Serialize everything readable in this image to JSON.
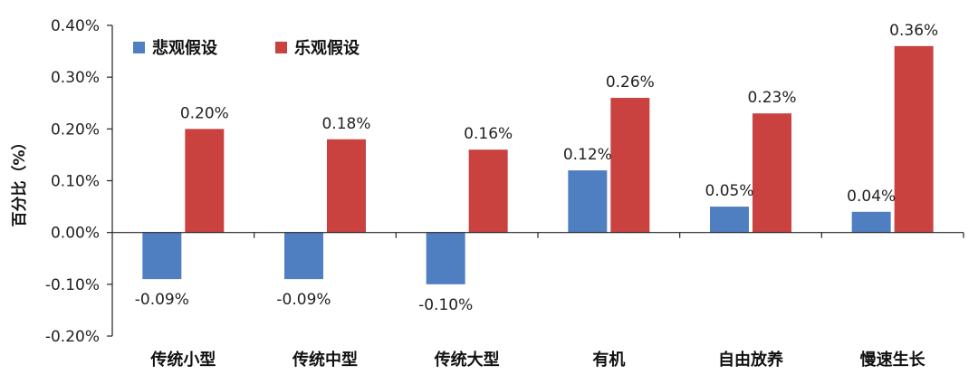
{
  "chart_data": {
    "type": "bar",
    "ylabel": "百分比（%）",
    "ylim": [
      -0.2,
      0.4
    ],
    "yticks": [
      0.4,
      0.3,
      0.2,
      0.1,
      0.0,
      -0.1,
      -0.2
    ],
    "ytick_labels": [
      "0.40%",
      "0.30%",
      "0.20%",
      "0.10%",
      "0.00%",
      "-0.10%",
      "-0.20%"
    ],
    "categories": [
      "传统小型",
      "传统中型",
      "传统大型",
      "有机",
      "自由放养",
      "慢速生长"
    ],
    "legend_position": "top-left",
    "series": [
      {
        "name": "悲观假设",
        "color": "#4f7fc1",
        "values": [
          -0.09,
          -0.09,
          -0.1,
          0.12,
          0.05,
          0.04
        ],
        "labels": [
          "-0.09%",
          "-0.09%",
          "-0.10%",
          "0.12%",
          "0.05%",
          "0.04%"
        ]
      },
      {
        "name": "乐观假设",
        "color": "#c9423f",
        "values": [
          0.2,
          0.18,
          0.16,
          0.26,
          0.23,
          0.36
        ],
        "labels": [
          "0.20%",
          "0.18%",
          "0.16%",
          "0.26%",
          "0.23%",
          "0.36%"
        ]
      }
    ]
  }
}
